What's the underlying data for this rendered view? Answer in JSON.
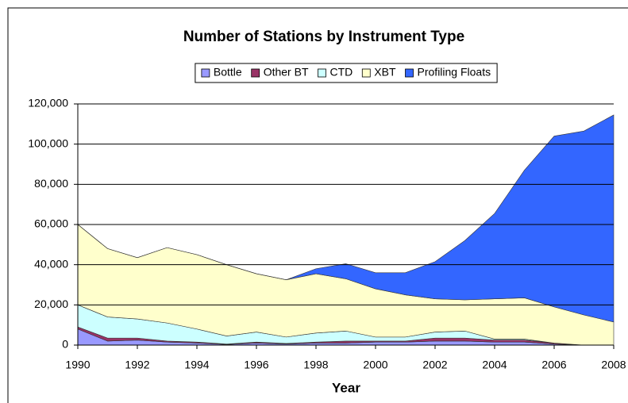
{
  "chart_data": {
    "type": "stacked-area",
    "title": "Number of Stations by Instrument Type",
    "x_label": "Year",
    "x": [
      1990,
      1991,
      1992,
      1993,
      1994,
      1995,
      1996,
      1997,
      1998,
      1999,
      2000,
      2001,
      2002,
      2003,
      2004,
      2005,
      2006,
      2007,
      2008
    ],
    "series": [
      {
        "name": "Bottle",
        "color": "#9999ff",
        "values": [
          8000,
          2000,
          2500,
          1500,
          1000,
          300,
          1000,
          500,
          1000,
          1000,
          1500,
          1500,
          2000,
          2000,
          1500,
          1500,
          500,
          0,
          0
        ]
      },
      {
        "name": "Other BT",
        "color": "#993366",
        "values": [
          1000,
          1500,
          1000,
          500,
          500,
          200,
          500,
          300,
          500,
          1000,
          500,
          500,
          1500,
          1500,
          1000,
          1000,
          500,
          0,
          0
        ]
      },
      {
        "name": "CTD",
        "color": "#ccffff",
        "values": [
          11000,
          10500,
          9500,
          9000,
          6500,
          4000,
          5000,
          3200,
          4500,
          5000,
          2000,
          2000,
          3000,
          3500,
          500,
          500,
          0,
          0,
          0
        ]
      },
      {
        "name": "XBT",
        "color": "#ffffcc",
        "values": [
          40000,
          34000,
          30500,
          37500,
          37000,
          35500,
          29000,
          28500,
          29500,
          26000,
          24000,
          21000,
          16500,
          15500,
          20000,
          20500,
          18000,
          15000,
          11500
        ]
      },
      {
        "name": "Profiling Floats",
        "color": "#3366ff",
        "values": [
          0,
          0,
          0,
          0,
          0,
          0,
          0,
          0,
          2500,
          7500,
          8000,
          11000,
          18500,
          29500,
          42500,
          63500,
          85000,
          91500,
          103000
        ]
      }
    ],
    "xlim": [
      1990,
      2008
    ],
    "xticks": [
      1990,
      1992,
      1994,
      1996,
      1998,
      2000,
      2002,
      2004,
      2006,
      2008
    ],
    "ylim": [
      0,
      120000
    ],
    "yticks": [
      0,
      {
        "value": 20000,
        "label": "20,000"
      },
      {
        "value": 40000,
        "label": "40,000"
      },
      {
        "value": 60000,
        "label": "60,000"
      },
      {
        "value": 80000,
        "label": "80,000"
      },
      {
        "value": 100000,
        "label": "100,000"
      },
      {
        "value": 120000,
        "label": "120,000"
      }
    ],
    "grid": true,
    "legend": "top"
  }
}
